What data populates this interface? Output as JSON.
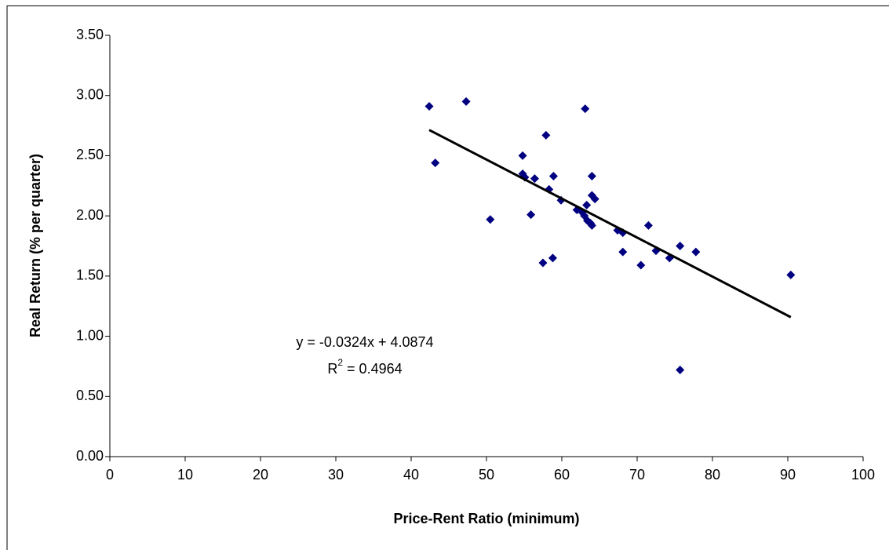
{
  "chart_data": {
    "type": "scatter",
    "x_label": "Price-Rent Ratio (minimum)",
    "y_label": "Real Return (% per quarter)",
    "x": [
      42.4,
      47.3,
      43.2,
      50.5,
      54.8,
      54.8,
      55.1,
      56.4,
      55.9,
      57.9,
      58.3,
      58.9,
      59.9,
      57.5,
      58.8,
      63.1,
      62.0,
      62.7,
      63.3,
      63.0,
      63.4,
      63.8,
      64.0,
      64.0,
      64.4,
      64.0,
      67.4,
      68.1,
      68.1,
      70.5,
      71.5,
      72.5,
      74.3,
      75.7,
      75.7,
      77.8,
      90.4
    ],
    "y": [
      2.91,
      2.95,
      2.44,
      1.97,
      2.5,
      2.35,
      2.32,
      2.31,
      2.01,
      2.67,
      2.22,
      2.33,
      2.13,
      1.61,
      1.65,
      2.89,
      2.05,
      2.03,
      2.09,
      2.0,
      1.96,
      1.94,
      2.33,
      2.17,
      2.14,
      1.92,
      1.88,
      1.86,
      1.7,
      1.59,
      1.92,
      1.71,
      1.65,
      1.75,
      0.72,
      1.7,
      1.51
    ],
    "color": "#000080",
    "trendline": {
      "slope": -0.0324,
      "intercept": 4.0874,
      "color": "#000000",
      "equation": "y = -0.0324x + 4.0874",
      "r2_label": [
        "R",
        "2",
        " = 0.4964"
      ]
    },
    "xlim": [
      0,
      100
    ],
    "xticks": [
      0,
      10,
      20,
      30,
      40,
      50,
      60,
      70,
      80,
      90,
      100
    ],
    "ylim": [
      0,
      3.5
    ],
    "yticks": [
      {
        "value": 0,
        "label": "0.00"
      },
      {
        "value": 0.5,
        "label": "0.50"
      },
      {
        "value": 1,
        "label": "1.00"
      },
      {
        "value": 1.5,
        "label": "1.50"
      },
      {
        "value": 2,
        "label": "2.00"
      },
      {
        "value": 2.5,
        "label": "2.50"
      },
      {
        "value": 3,
        "label": "3.00"
      },
      {
        "value": 3.5,
        "label": "3.50"
      }
    ],
    "grid": false
  }
}
